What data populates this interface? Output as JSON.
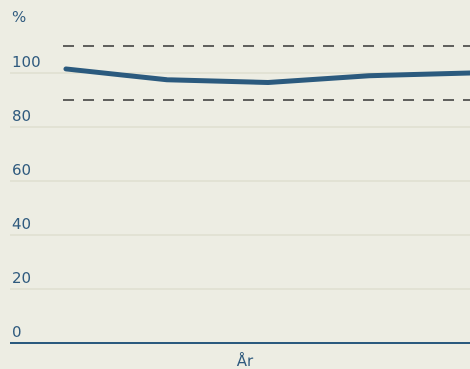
{
  "chart_data": {
    "type": "line",
    "ylabel": "%",
    "xlabel": "År",
    "ylim": [
      0,
      110
    ],
    "yticks": [
      0,
      20,
      40,
      60,
      80,
      100
    ],
    "grid": true,
    "series": [
      {
        "values": [
          101.5,
          97.5,
          96.5,
          99,
          100
        ]
      }
    ],
    "reference_lines": [
      110,
      90
    ],
    "colors": {
      "series": "#2b5a7e",
      "grid": "#d8d8c6",
      "axis": "#2b5a7e",
      "reference": "#333333",
      "background": "#edede3",
      "text": "#2f5a7e"
    }
  }
}
